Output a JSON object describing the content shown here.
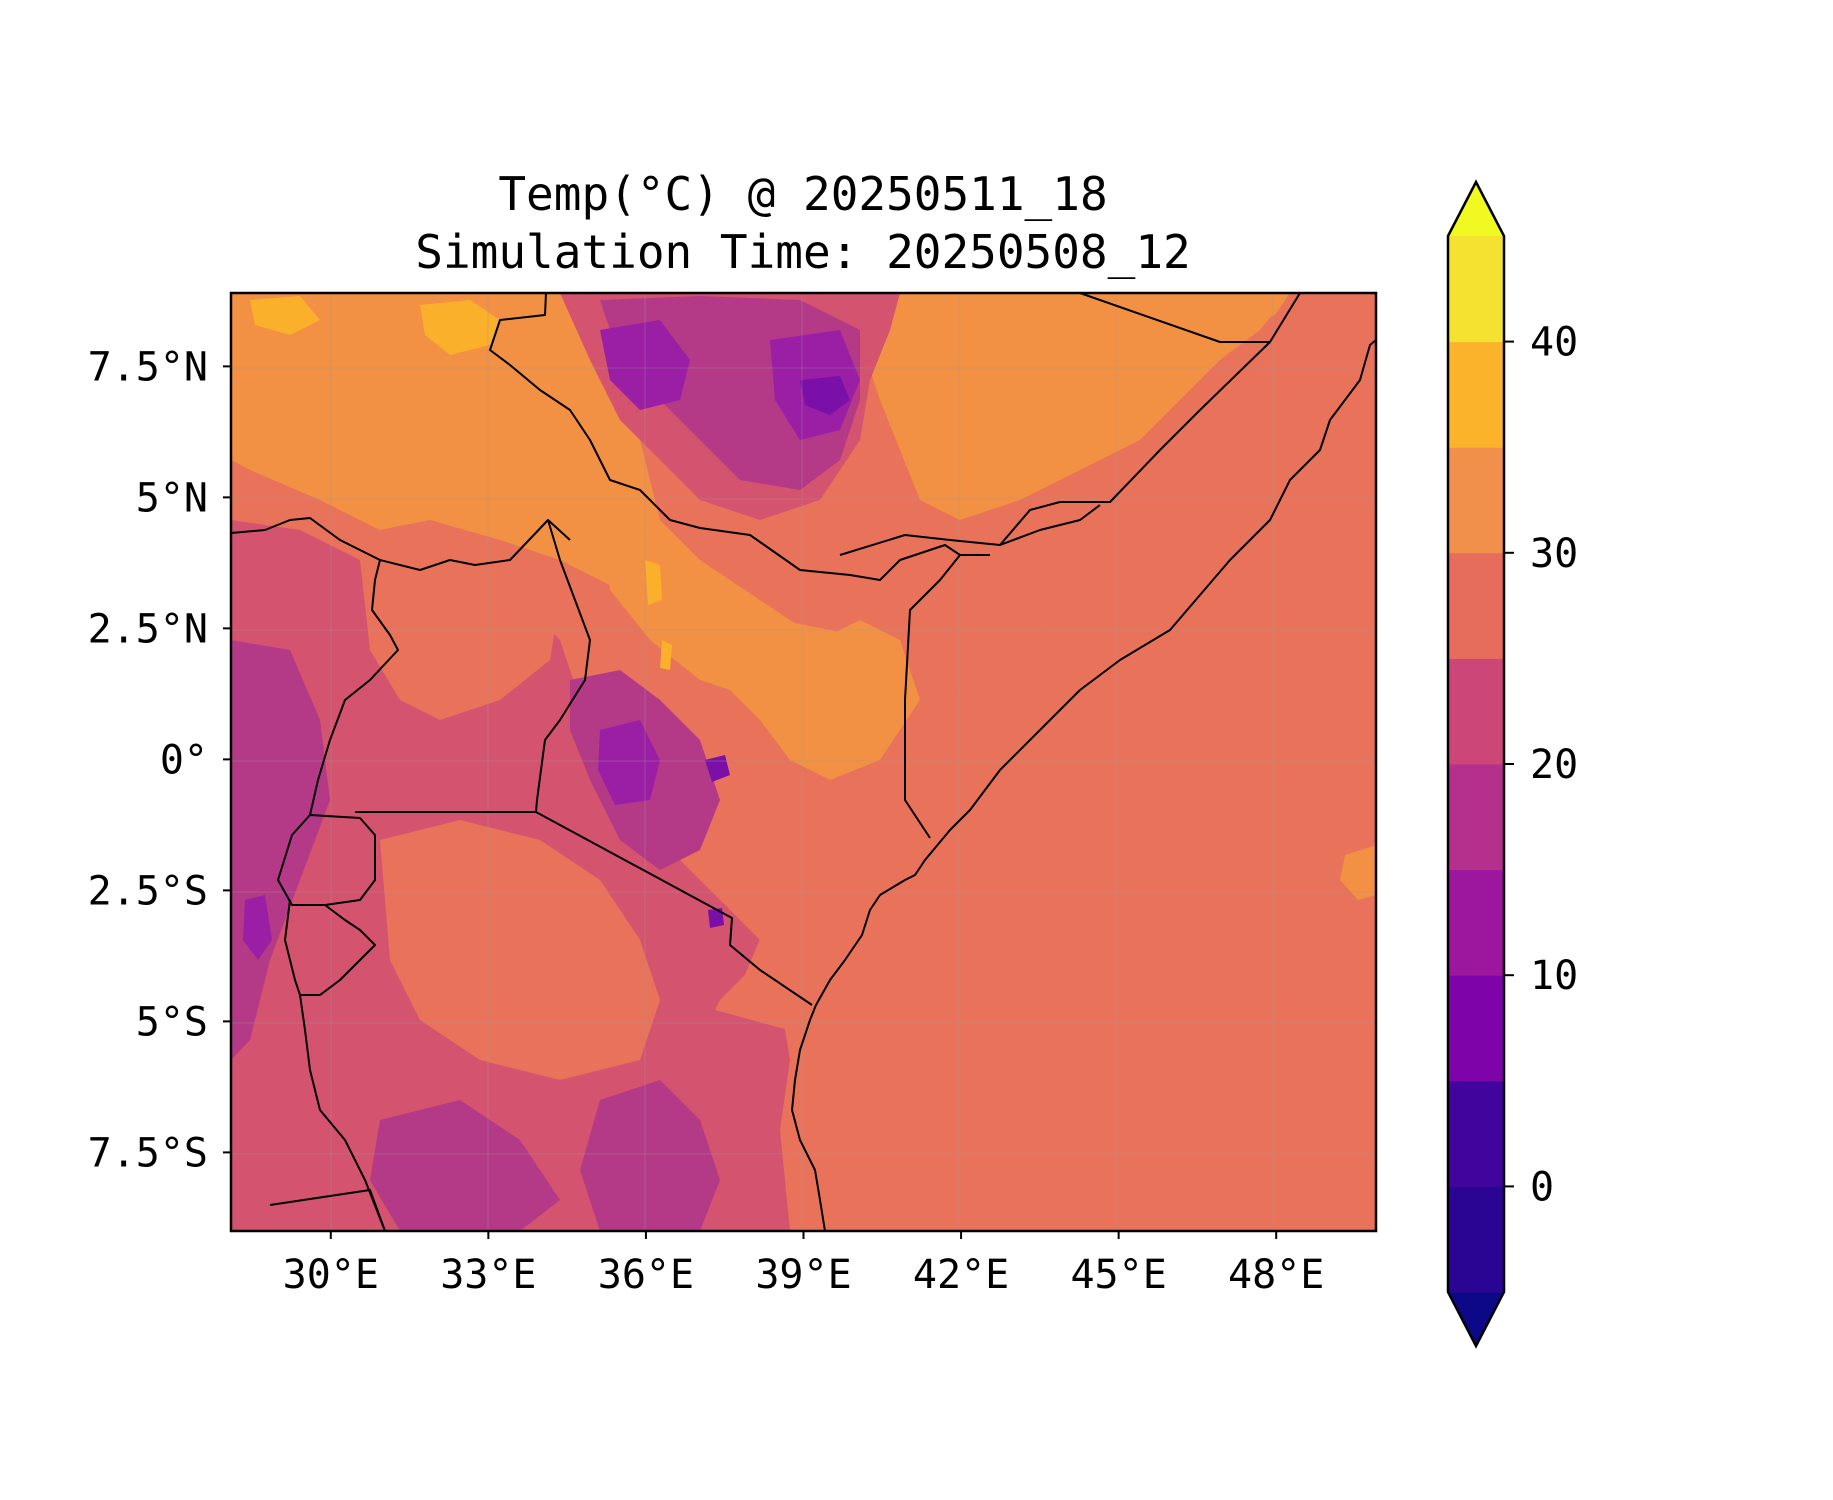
{
  "title": {
    "line1": "Temp(°C) @ 20250511_18",
    "line2": "Simulation Time: 20250508_12"
  },
  "chart_data": {
    "type": "heatmap",
    "variable": "Temperature",
    "unit": "°C",
    "valid_time": "20250511_18",
    "simulation_time": "20250508_12",
    "x_axis": {
      "ticks": [
        "30°E",
        "33°E",
        "36°E",
        "39°E",
        "42°E",
        "45°E",
        "48°E"
      ],
      "lon_range": [
        28.1,
        49.9
      ]
    },
    "y_axis": {
      "ticks": [
        "7.5°N",
        "5°N",
        "2.5°N",
        "0°",
        "2.5°S",
        "5°S",
        "7.5°S"
      ],
      "lat_range": [
        -9.0,
        8.9
      ]
    },
    "grid": true,
    "colorbar": {
      "position": "right",
      "extend": "both",
      "levels": [
        -5,
        0,
        5,
        10,
        15,
        20,
        25,
        30,
        35,
        40,
        45
      ],
      "tick_labels": [
        "0",
        "10",
        "20",
        "30",
        "40"
      ],
      "colors": [
        "#0d0887",
        "#2a0593",
        "#41049d",
        "#7e03a8",
        "#9c179e",
        "#b52f8c",
        "#cc4778",
        "#e66c5c",
        "#f0904a",
        "#fbb32c",
        "#f5e12f",
        "#f0f921"
      ]
    },
    "features": [
      "country borders",
      "coastline"
    ]
  },
  "colors": {
    "ocean_bg": "#e8735a",
    "lowland_warm": "#f29043",
    "hot": "#fbb02b",
    "mild": "#d4536e",
    "cool": "#b43a88",
    "cold": "#9a1fa4",
    "coldest": "#7a10a8"
  }
}
